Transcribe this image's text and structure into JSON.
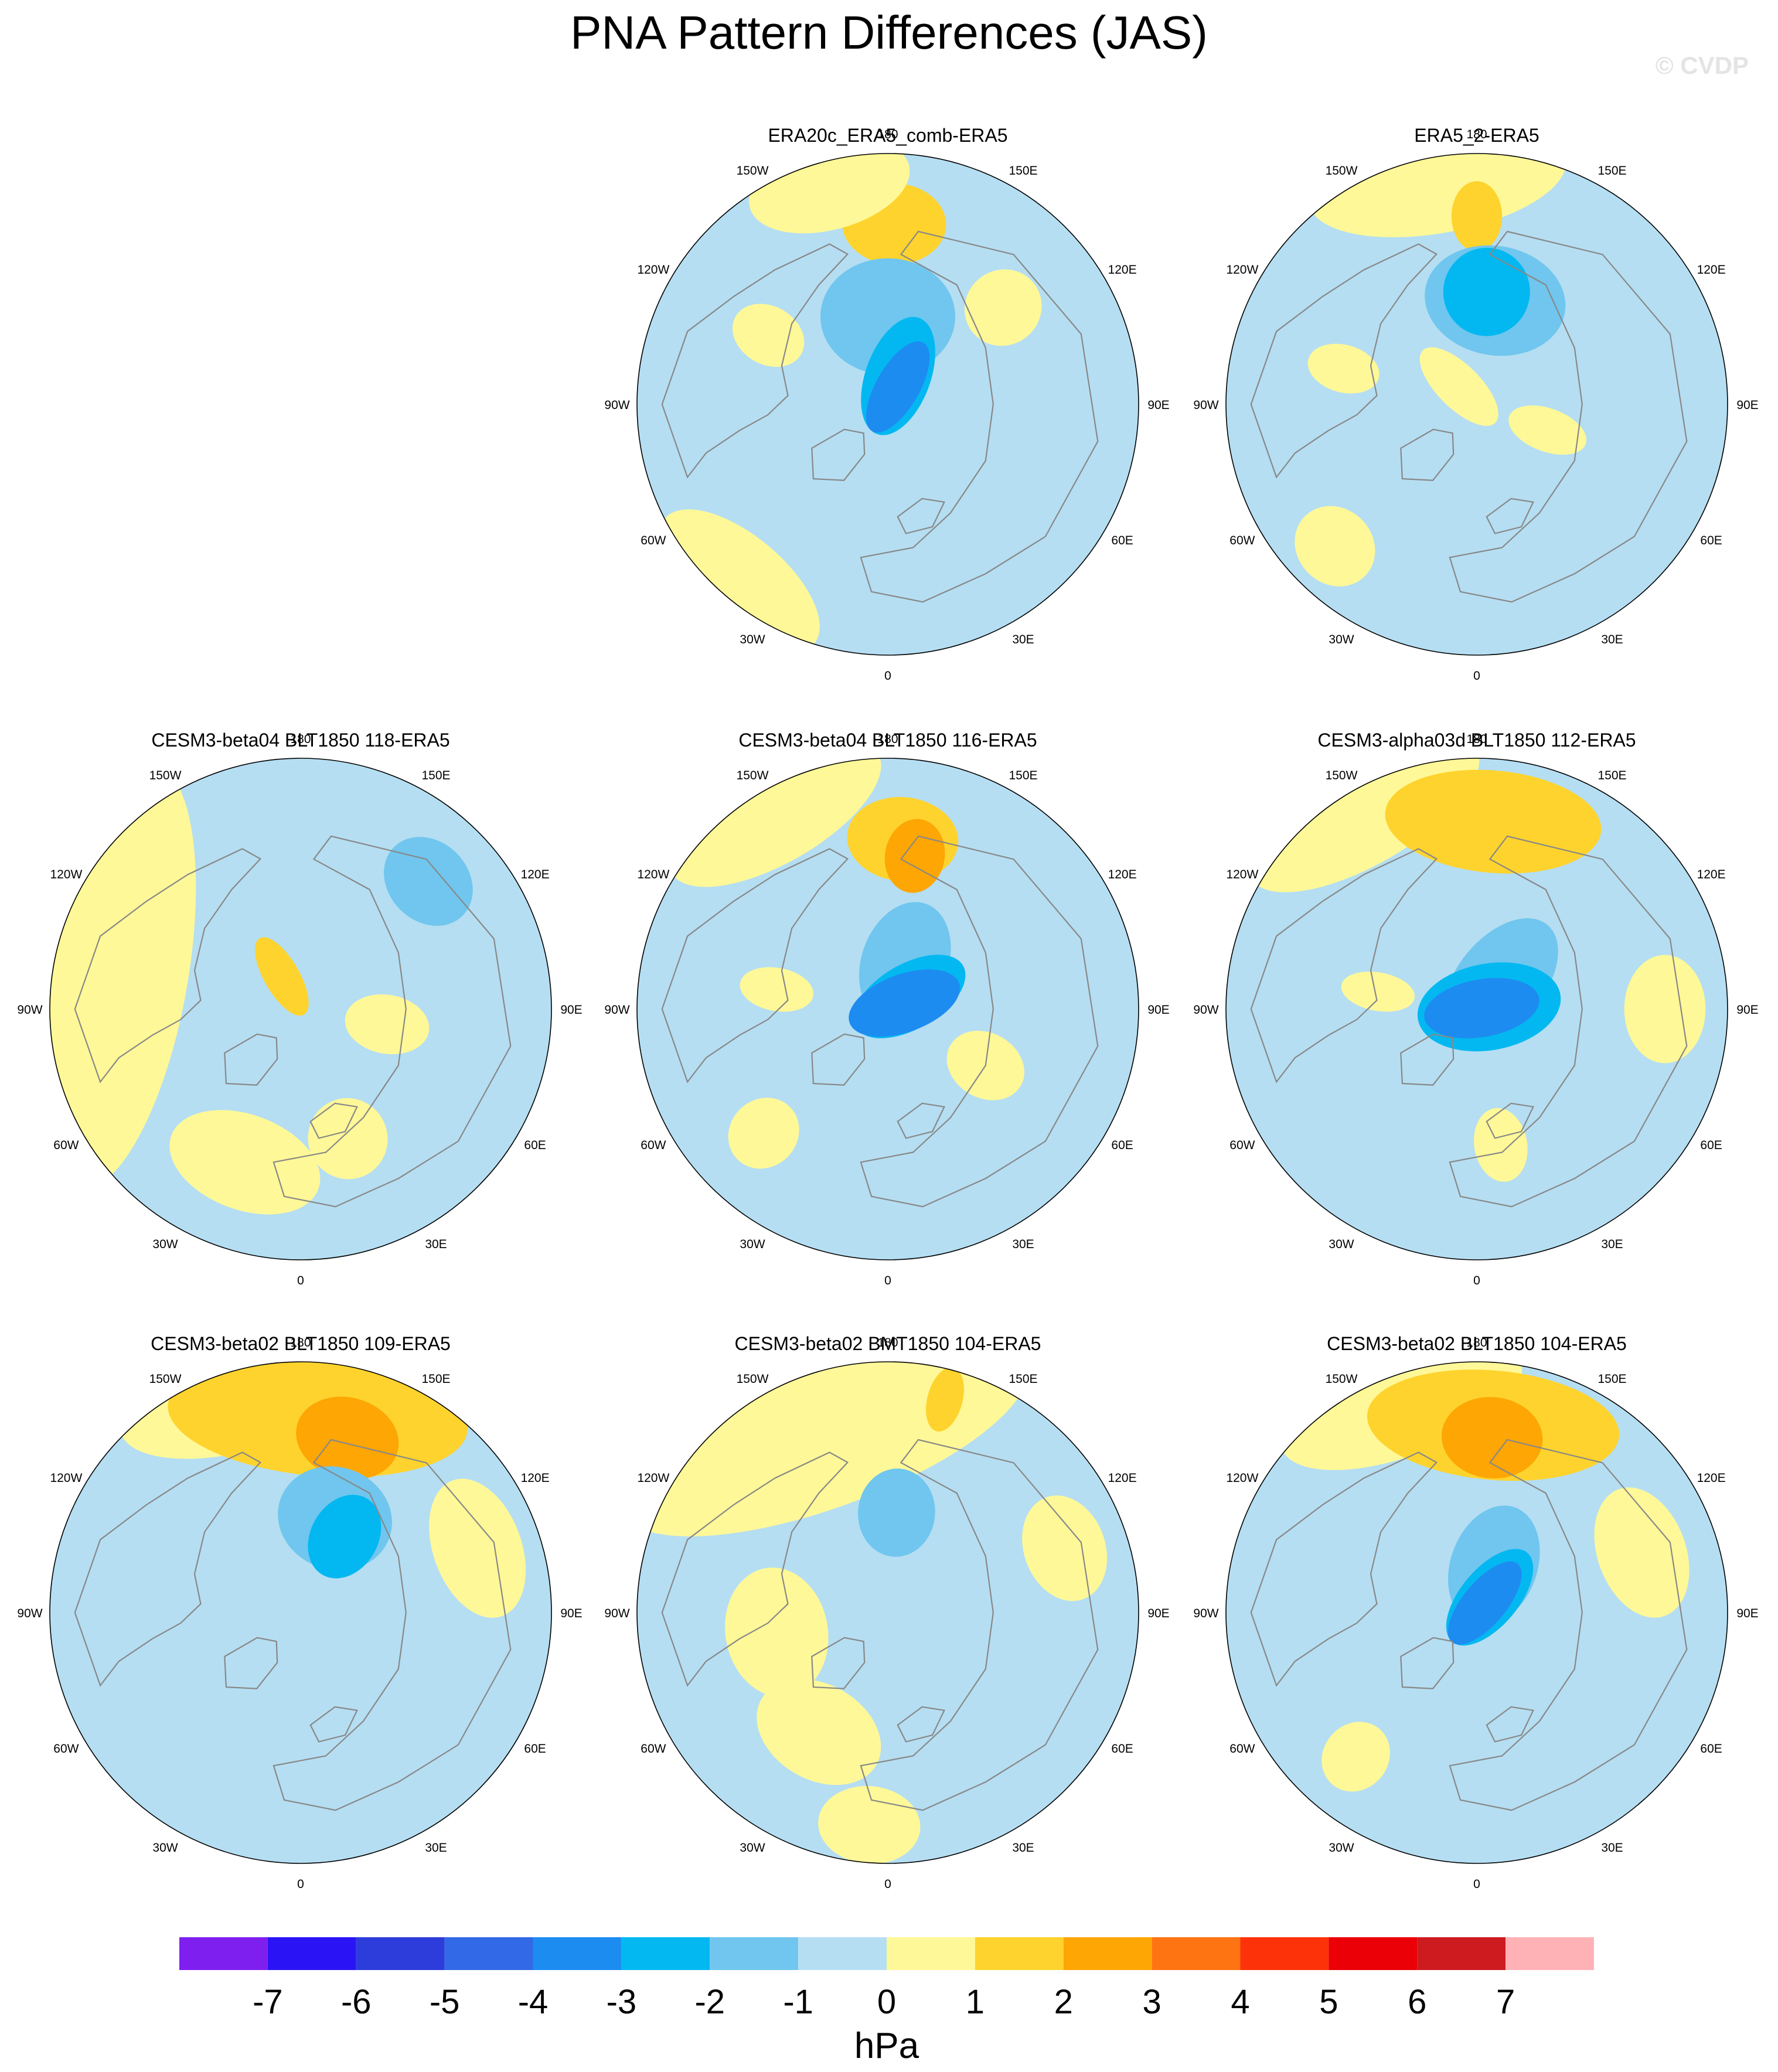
{
  "title": "PNA Pattern Differences (JAS)",
  "watermark": "© CVDP",
  "colors": {
    "bins": [
      "#7f1fef",
      "#2a14f5",
      "#2d3ddb",
      "#3169e6",
      "#1d8cf1",
      "#03b8f1",
      "#70c6ee",
      "#b5def2",
      "#fff898",
      "#fed32d",
      "#fda604",
      "#fe7413",
      "#fe3209",
      "#ea0006",
      "#cd1b20",
      "#ffb2b6"
    ],
    "land": "#888888"
  },
  "colorbar": {
    "labels": [
      "-7",
      "-6",
      "-5",
      "-4",
      "-3",
      "-2",
      "-1",
      "0",
      "1",
      "2",
      "3",
      "4",
      "5",
      "6",
      "7"
    ],
    "unit": "hPa"
  },
  "lon_labels": [
    "180",
    "150E",
    "120E",
    "90E",
    "60E",
    "30E",
    "0",
    "30W",
    "60W",
    "90W",
    "120W",
    "150W"
  ],
  "panels": [
    {
      "title": "ERA20c_ERA5_comb-ERA5",
      "blobs": [
        {
          "bin": 8,
          "lon": -40,
          "r": 0.92,
          "w": 44
        },
        {
          "bin": 8,
          "lon": -120,
          "r": 0.55,
          "w": 22
        },
        {
          "bin": 8,
          "lon": 130,
          "r": 0.6,
          "w": 26
        },
        {
          "bin": 9,
          "lon": 178,
          "r": 0.72,
          "w": 30
        },
        {
          "bin": 8,
          "lon": -165,
          "r": 0.9,
          "w": 38
        },
        {
          "bin": 6,
          "lon": 180,
          "r": 0.35,
          "w": 80
        },
        {
          "bin": 5,
          "lon": 160,
          "r": 0.12,
          "w": 90
        },
        {
          "bin": 4,
          "lon": 150,
          "r": 0.08,
          "w": 60
        }
      ]
    },
    {
      "title": "ERA5_2-ERA5",
      "blobs": [
        {
          "bin": 8,
          "lon": -170,
          "r": 0.9,
          "w": 60
        },
        {
          "bin": 9,
          "lon": 180,
          "r": 0.75,
          "w": 14
        },
        {
          "bin": 8,
          "lon": -105,
          "r": 0.55,
          "w": 18
        },
        {
          "bin": 8,
          "lon": -45,
          "r": 0.8,
          "w": 22
        },
        {
          "bin": 8,
          "lon": 70,
          "r": 0.3,
          "w": 30
        },
        {
          "bin": 8,
          "lon": -135,
          "r": 0.1,
          "w": 60
        },
        {
          "bin": 6,
          "lon": 170,
          "r": 0.42,
          "w": 70
        },
        {
          "bin": 5,
          "lon": 175,
          "r": 0.45,
          "w": 40
        }
      ]
    },
    {
      "title": "CESM3-beta04 BLT1850 118-ERA5",
      "blobs": [
        {
          "bin": 8,
          "lon": -100,
          "r": 0.75,
          "w": 120
        },
        {
          "bin": 8,
          "lon": -20,
          "r": 0.65,
          "w": 50
        },
        {
          "bin": 8,
          "lon": 20,
          "r": 0.55,
          "w": 30
        },
        {
          "bin": 6,
          "lon": 135,
          "r": 0.72,
          "w": 28
        },
        {
          "bin": 9,
          "lon": -150,
          "r": 0.15,
          "w": 40
        },
        {
          "bin": 8,
          "lon": 80,
          "r": 0.35,
          "w": 35
        }
      ]
    },
    {
      "title": "CESM3-beta04 BLT1850 116-ERA5",
      "blobs": [
        {
          "bin": 8,
          "lon": -150,
          "r": 0.9,
          "w": 55
        },
        {
          "bin": 9,
          "lon": 175,
          "r": 0.68,
          "w": 34
        },
        {
          "bin": 10,
          "lon": 170,
          "r": 0.62,
          "w": 20
        },
        {
          "bin": 8,
          "lon": 60,
          "r": 0.45,
          "w": 30
        },
        {
          "bin": 8,
          "lon": -45,
          "r": 0.7,
          "w": 20
        },
        {
          "bin": 8,
          "lon": -100,
          "r": 0.45,
          "w": 20
        },
        {
          "bin": 6,
          "lon": 160,
          "r": 0.2,
          "w": 90
        },
        {
          "bin": 5,
          "lon": 120,
          "r": 0.1,
          "w": 90
        },
        {
          "bin": 4,
          "lon": 110,
          "r": 0.07,
          "w": 80
        }
      ]
    },
    {
      "title": "CESM3-alpha03d BLT1850 112-ERA5",
      "blobs": [
        {
          "bin": 8,
          "lon": -150,
          "r": 0.9,
          "w": 60
        },
        {
          "bin": 9,
          "lon": 175,
          "r": 0.75,
          "w": 60
        },
        {
          "bin": 8,
          "lon": 90,
          "r": 0.75,
          "w": 30
        },
        {
          "bin": 8,
          "lon": -100,
          "r": 0.4,
          "w": 20
        },
        {
          "bin": 8,
          "lon": 10,
          "r": 0.55,
          "w": 20
        },
        {
          "bin": 6,
          "lon": 140,
          "r": 0.15,
          "w": 120
        },
        {
          "bin": 5,
          "lon": 100,
          "r": 0.05,
          "w": 120
        },
        {
          "bin": 4,
          "lon": 100,
          "r": 0.02,
          "w": 80
        }
      ]
    },
    {
      "title": "CESM3-beta02 BLT1850 109-ERA5",
      "blobs": [
        {
          "bin": 8,
          "lon": -165,
          "r": 0.88,
          "w": 60
        },
        {
          "bin": 9,
          "lon": 175,
          "r": 0.78,
          "w": 80
        },
        {
          "bin": 10,
          "lon": 165,
          "r": 0.72,
          "w": 30
        },
        {
          "bin": 8,
          "lon": 110,
          "r": 0.75,
          "w": 40
        },
        {
          "bin": 6,
          "lon": 160,
          "r": 0.4,
          "w": 60
        },
        {
          "bin": 5,
          "lon": 150,
          "r": 0.35,
          "w": 40
        }
      ]
    },
    {
      "title": "CESM3-beta02 BMT1850 104-ERA5",
      "blobs": [
        {
          "bin": 8,
          "lon": -160,
          "r": 0.75,
          "w": 120
        },
        {
          "bin": 8,
          "lon": -80,
          "r": 0.45,
          "w": 60
        },
        {
          "bin": 8,
          "lon": -30,
          "r": 0.55,
          "w": 50
        },
        {
          "bin": 8,
          "lon": -5,
          "r": 0.85,
          "w": 25
        },
        {
          "bin": 8,
          "lon": 110,
          "r": 0.75,
          "w": 30
        },
        {
          "bin": 6,
          "lon": 175,
          "r": 0.4,
          "w": 40
        },
        {
          "bin": 9,
          "lon": 165,
          "r": 0.88,
          "w": 8
        }
      ]
    },
    {
      "title": "CESM3-beta02 BLT1850 104-ERA5",
      "blobs": [
        {
          "bin": 8,
          "lon": -160,
          "r": 0.88,
          "w": 60
        },
        {
          "bin": 9,
          "lon": 175,
          "r": 0.75,
          "w": 70
        },
        {
          "bin": 10,
          "lon": 175,
          "r": 0.7,
          "w": 30
        },
        {
          "bin": 8,
          "lon": 110,
          "r": 0.7,
          "w": 40
        },
        {
          "bin": 8,
          "lon": -40,
          "r": 0.75,
          "w": 18
        },
        {
          "bin": 6,
          "lon": 160,
          "r": 0.2,
          "w": 90
        },
        {
          "bin": 5,
          "lon": 140,
          "r": 0.08,
          "w": 80
        },
        {
          "bin": 4,
          "lon": 140,
          "r": 0.05,
          "w": 60
        }
      ]
    }
  ]
}
